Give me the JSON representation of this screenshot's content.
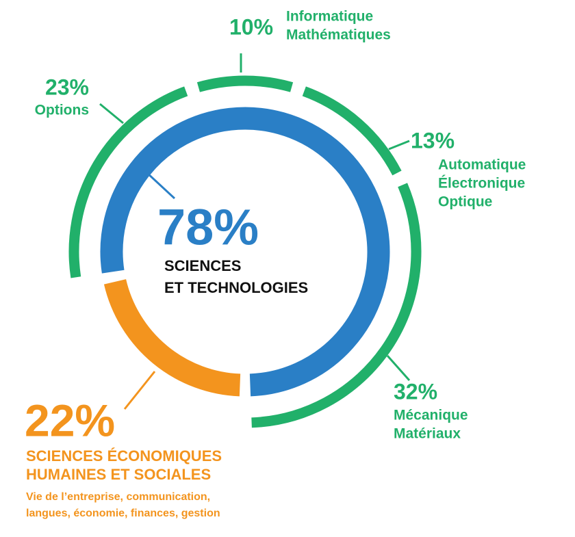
{
  "chart_data": {
    "type": "nested-donut",
    "inner": {
      "categories": [
        [
          "SCIENCES",
          "ET TECHNOLOGIES"
        ],
        [
          "SCIENCES ÉCONOMIQUES",
          "HUMAINES ET SOCIALES"
        ]
      ],
      "values": [
        78,
        22
      ],
      "value_labels": [
        "78%",
        "22%"
      ],
      "colors": [
        "#2a7fc6",
        "#f3941e"
      ]
    },
    "annotation": [
      "Vie de l’entreprise, communication,",
      "langues, économie, finances, gestion"
    ],
    "outer": {
      "categories": [
        [
          "Options"
        ],
        [
          "Informatique",
          "Mathématiques"
        ],
        [
          "Automatique",
          "Électronique",
          "Optique"
        ],
        [
          "Mécanique",
          "Matériaux"
        ]
      ],
      "values": [
        23,
        10,
        13,
        32
      ],
      "value_labels": [
        "23%",
        "10%",
        "13%",
        "32%"
      ],
      "color": "#21b06a"
    }
  }
}
